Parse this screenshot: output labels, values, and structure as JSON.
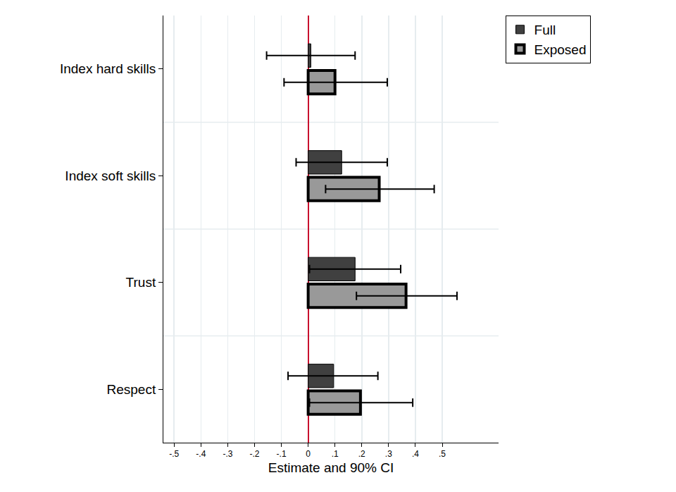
{
  "chart_data": {
    "type": "bar",
    "orientation": "horizontal",
    "x_label": "Estimate and 90% CI",
    "categories": [
      "Index hard skills",
      "Index soft skills",
      "Trust",
      "Respect"
    ],
    "series": [
      {
        "name": "Full",
        "color": "#404040",
        "values": [
          0.01,
          0.125,
          0.175,
          0.095
        ],
        "ci_low": [
          -0.155,
          -0.045,
          0.005,
          -0.075
        ],
        "ci_high": [
          0.175,
          0.295,
          0.345,
          0.26
        ]
      },
      {
        "name": "Exposed",
        "color": "#999999",
        "values": [
          0.1,
          0.265,
          0.365,
          0.195
        ],
        "ci_low": [
          -0.09,
          0.065,
          0.18,
          0.005
        ],
        "ci_high": [
          0.295,
          0.47,
          0.555,
          0.39
        ]
      }
    ],
    "xlim": [
      -0.54,
      0.71
    ],
    "xticks": [
      {
        "value": -0.5,
        "label": "-.5"
      },
      {
        "value": -0.4,
        "label": "-.4"
      },
      {
        "value": -0.3,
        "label": "-.3"
      },
      {
        "value": -0.2,
        "label": "-.2"
      },
      {
        "value": -0.1,
        "label": "-.1"
      },
      0,
      {
        "value": 0.1,
        "label": ".1"
      },
      {
        "value": 0.2,
        "label": ".2"
      },
      {
        "value": 0.3,
        "label": ".3"
      },
      {
        "value": 0.4,
        "label": ".4"
      },
      {
        "value": 0.5,
        "label": ".5"
      }
    ],
    "grid": true,
    "legend": "top right"
  }
}
